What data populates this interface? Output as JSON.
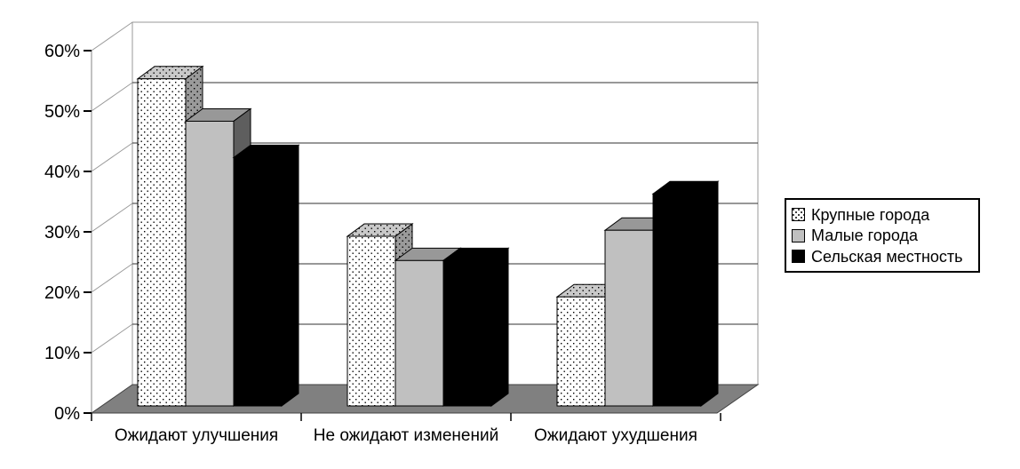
{
  "chart_data": {
    "type": "bar",
    "style": "3d-clustered-column",
    "title": "",
    "xlabel": "",
    "ylabel": "",
    "categories": [
      "Ожидают улучшения",
      "Не ожидают изменений",
      "Ожидают ухудшения"
    ],
    "series": [
      {
        "name": "Крупные города",
        "pattern": "white-dotted",
        "values": [
          54,
          28,
          18
        ]
      },
      {
        "name": "Малые города",
        "pattern": "solid-silver",
        "values": [
          47,
          24,
          29
        ]
      },
      {
        "name": "Сельская местность",
        "pattern": "solid-black",
        "values": [
          41,
          24,
          35
        ]
      }
    ],
    "y_axis": {
      "min": 0,
      "max": 60,
      "step": 10,
      "format": "percent",
      "tick_labels": [
        "0%",
        "10%",
        "20%",
        "30%",
        "40%",
        "50%",
        "60%"
      ]
    },
    "grid": true,
    "legend_position": "right"
  },
  "colors": {
    "background": "#ffffff",
    "wall": "#ffffff",
    "wall_edge": "#999999",
    "gridline": "#303030",
    "floor": "#808080",
    "floor_edge": "#404040",
    "bar_outline": "#000000",
    "axis_tick": "#000000",
    "text": "#000000",
    "series": [
      {
        "front": "#ffffff",
        "top": "#c9c9c9",
        "side": "#9a9a9a",
        "dot": "#000000"
      },
      {
        "front": "#c0c0c0",
        "top": "#989898",
        "side": "#5e5e5e"
      },
      {
        "front": "#000000",
        "top": "#000000",
        "side": "#000000"
      }
    ]
  }
}
